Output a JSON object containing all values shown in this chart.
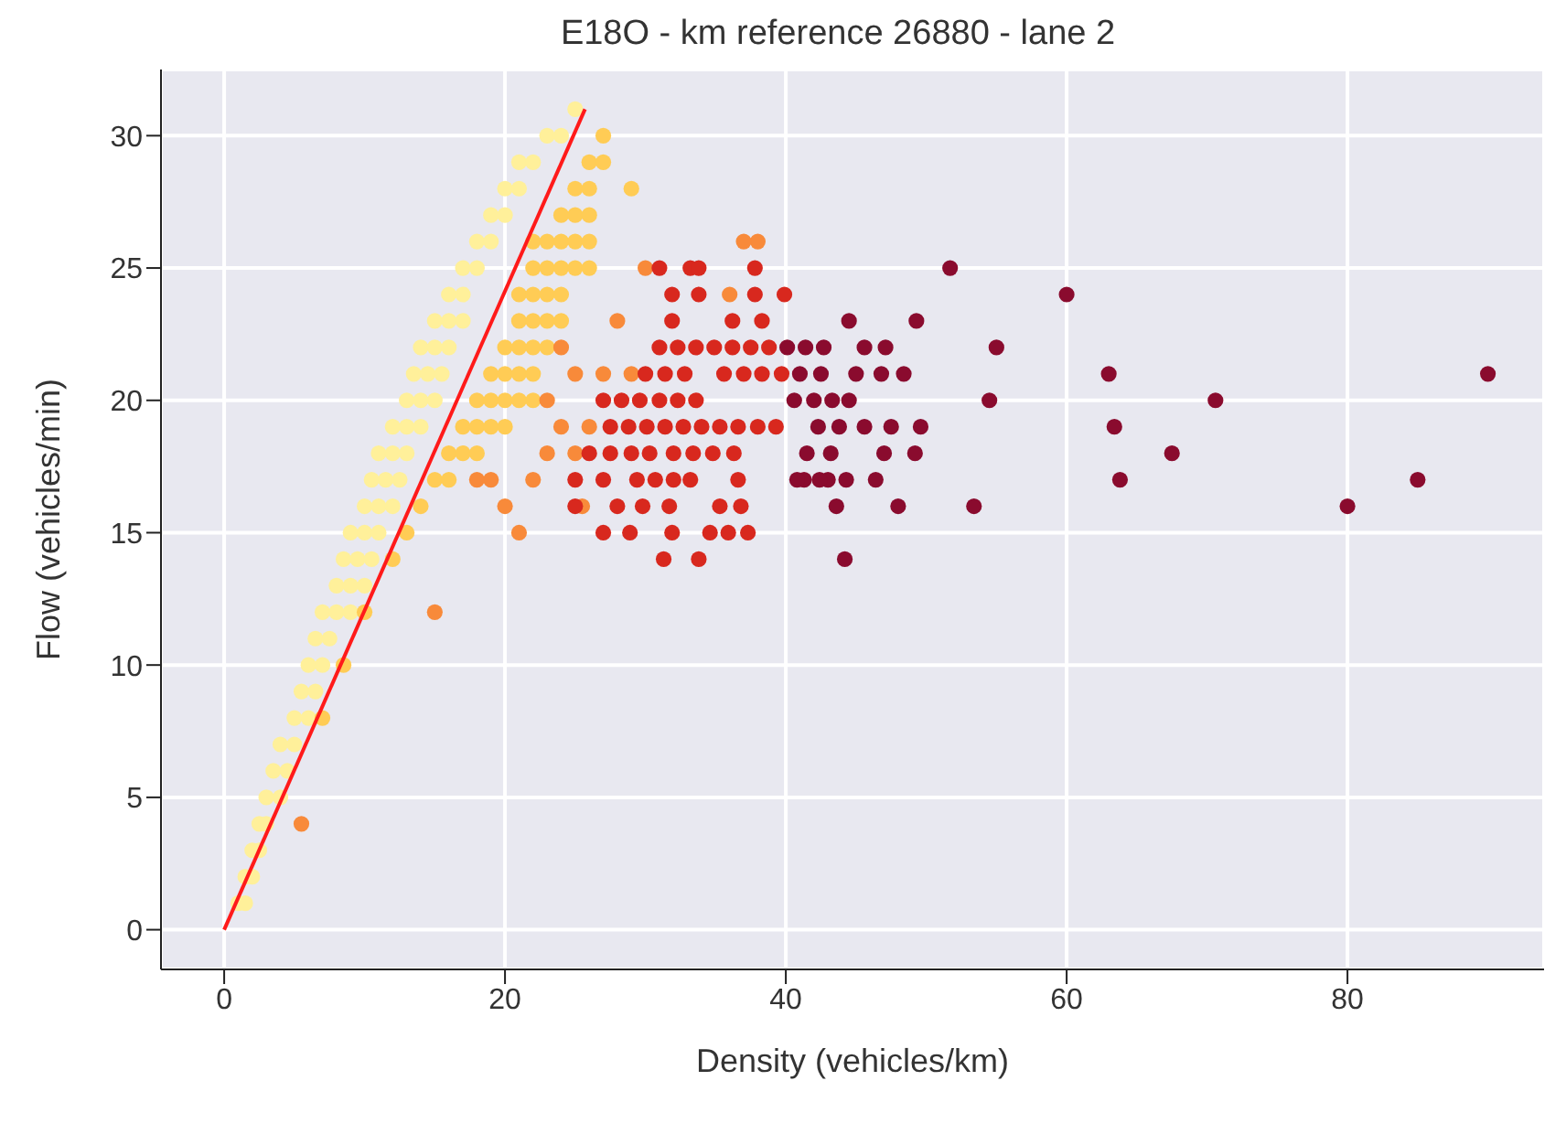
{
  "chart_data": {
    "type": "scatter",
    "title": "E18O - km reference 26880 - lane 2",
    "xlabel": "Density (vehicles/km)",
    "ylabel": "Flow (vehicles/min)",
    "xlim": [
      -4.5,
      94
    ],
    "xticks": [
      0,
      20,
      40,
      60,
      80
    ],
    "ylim": [
      -1.5,
      32.5
    ],
    "yticks": [
      0,
      5,
      10,
      15,
      20,
      25,
      30
    ],
    "grid": true,
    "marker": "circle",
    "series": [
      {
        "color": "#fff09a",
        "x": [
          1,
          1.5,
          1.5,
          2,
          2,
          2.5,
          2.5,
          3,
          3,
          4,
          3.5,
          4.5,
          4,
          5,
          5,
          6,
          5.5,
          6.5,
          6,
          7,
          6.5,
          7.5,
          7,
          8,
          9,
          8,
          9,
          10,
          8.5,
          9.5,
          10.5,
          9,
          10,
          11,
          10,
          11,
          12,
          10.5,
          11.5,
          12.5,
          11,
          12,
          13,
          12,
          13,
          14,
          13,
          14,
          15,
          13.5,
          14.5,
          15.5,
          14,
          15,
          16,
          15,
          16,
          17,
          16,
          17,
          17,
          18,
          18,
          19,
          19,
          20,
          20,
          21,
          21,
          22,
          23,
          24,
          25
        ],
        "values": [
          1,
          1,
          2,
          2,
          3,
          3,
          4,
          4,
          5,
          5,
          6,
          6,
          7,
          7,
          8,
          8,
          9,
          9,
          10,
          10,
          11,
          11,
          12,
          12,
          12,
          13,
          13,
          13,
          14,
          14,
          14,
          15,
          15,
          15,
          16,
          16,
          16,
          17,
          17,
          17,
          18,
          18,
          18,
          19,
          19,
          19,
          20,
          20,
          20,
          21,
          21,
          21,
          22,
          22,
          22,
          23,
          23,
          23,
          24,
          24,
          25,
          25,
          26,
          26,
          27,
          27,
          28,
          28,
          29,
          29,
          30,
          30,
          31
        ]
      },
      {
        "color": "#ffcc55",
        "x": [
          7,
          8.5,
          10,
          12,
          13,
          14,
          15,
          16,
          16,
          17,
          18,
          17,
          18,
          19,
          20,
          18,
          19,
          20,
          21,
          22,
          19,
          20,
          21,
          22,
          20,
          21,
          22,
          23,
          21,
          22,
          23,
          24,
          21,
          22,
          23,
          24,
          22,
          23,
          24,
          25,
          26,
          22,
          23,
          24,
          25,
          26,
          24,
          25,
          26,
          25,
          26,
          29,
          26,
          27,
          27
        ],
        "values": [
          8,
          10,
          12,
          14,
          15,
          16,
          17,
          17,
          18,
          18,
          18,
          19,
          19,
          19,
          19,
          20,
          20,
          20,
          20,
          20,
          21,
          21,
          21,
          21,
          22,
          22,
          22,
          22,
          23,
          23,
          23,
          23,
          24,
          24,
          24,
          24,
          25,
          25,
          25,
          25,
          25,
          26,
          26,
          26,
          26,
          26,
          27,
          27,
          27,
          28,
          28,
          28,
          29,
          29,
          30
        ]
      },
      {
        "color": "#f88a3a",
        "x": [
          5.5,
          15,
          21,
          20,
          19,
          18,
          22,
          25,
          24,
          23,
          25,
          27,
          29,
          24,
          28,
          30,
          38,
          37,
          36,
          25.5,
          26,
          23
        ],
        "values": [
          4,
          12,
          15,
          16,
          17,
          17,
          17,
          18,
          19,
          20,
          21,
          21,
          21,
          22,
          23,
          25,
          26,
          26,
          24,
          16,
          19,
          18
        ]
      },
      {
        "color": "#d8281e",
        "x": [
          31,
          33.2,
          33.8,
          37.8,
          31.9,
          33.8,
          37.8,
          39.9,
          31.9,
          36.2,
          38.3,
          31,
          32.3,
          33.6,
          34.9,
          36.2,
          37.5,
          38.8,
          30,
          31.4,
          32.8,
          35.6,
          37,
          38.3,
          39.7,
          27,
          28.3,
          29.6,
          31,
          32.3,
          33.6,
          27.5,
          28.8,
          30.1,
          31.4,
          32.7,
          34,
          35.3,
          36.6,
          38,
          39.3,
          26,
          27.5,
          29,
          30.3,
          32,
          33.4,
          34.8,
          36.3,
          25,
          27,
          29.4,
          30.7,
          32,
          33.2,
          36.6,
          25,
          28,
          29.8,
          31.7,
          35.3,
          36.8,
          27,
          28.9,
          31.9,
          34.6,
          35.9,
          37.3,
          31.3,
          33.8
        ],
        "values": [
          25,
          25,
          25,
          25,
          24,
          24,
          24,
          24,
          23,
          23,
          23,
          22,
          22,
          22,
          22,
          22,
          22,
          22,
          21,
          21,
          21,
          21,
          21,
          21,
          21,
          20,
          20,
          20,
          20,
          20,
          20,
          19,
          19,
          19,
          19,
          19,
          19,
          19,
          19,
          19,
          19,
          18,
          18,
          18,
          18,
          18,
          18,
          18,
          18,
          17,
          17,
          17,
          17,
          17,
          17,
          17,
          16,
          16,
          16,
          16,
          16,
          16,
          15,
          15,
          15,
          15,
          15,
          15,
          14,
          14
        ]
      },
      {
        "color": "#8a0b2e",
        "x": [
          51.7,
          60,
          44.5,
          49.3,
          40.1,
          41.4,
          42.7,
          45.6,
          47.1,
          55,
          41,
          42.5,
          45,
          46.8,
          48.4,
          63,
          90,
          40.6,
          42,
          43.3,
          44.5,
          54.5,
          70.6,
          42.3,
          43.8,
          45.6,
          47.5,
          49.6,
          63.4,
          41.5,
          43.2,
          47,
          49.2,
          67.5,
          41.3,
          43,
          40.8,
          42.4,
          44.3,
          46.4,
          63.8,
          85,
          43.6,
          48,
          53.4,
          80,
          44.2
        ],
        "values": [
          25,
          24,
          23,
          23,
          22,
          22,
          22,
          22,
          22,
          22,
          21,
          21,
          21,
          21,
          21,
          21,
          21,
          20,
          20,
          20,
          20,
          20,
          20,
          19,
          19,
          19,
          19,
          19,
          19,
          18,
          18,
          18,
          18,
          18,
          17,
          17,
          17,
          17,
          17,
          17,
          17,
          17,
          16,
          16,
          16,
          16,
          14
        ]
      },
      {
        "type": "line",
        "color": "#ff1a1a",
        "marker": "none",
        "line_style": "solid",
        "x": [
          0,
          25.7
        ],
        "values": [
          0,
          31
        ]
      }
    ]
  }
}
